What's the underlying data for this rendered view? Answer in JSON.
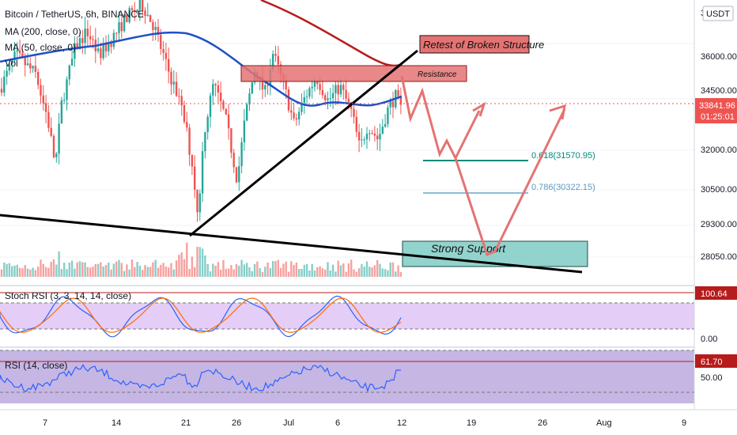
{
  "header": {
    "symbol_line": "Bitcoin / TetherUS, 6h, BINANCE",
    "ma200_label": "MA (200, close, 0)",
    "ma50_label": "MA (50, close, 0)",
    "vol_label": "Vol",
    "currency": "USDT",
    "currency_prefix": "3"
  },
  "price_axis": {
    "ticks": [
      "36000.00",
      "34500.00",
      "32000.00",
      "30500.00",
      "29300.00",
      "28050.00"
    ],
    "current_price": "33841.96",
    "countdown": "01:25:01"
  },
  "time_axis": {
    "ticks": [
      "7",
      "14",
      "21",
      "26",
      "Jul",
      "6",
      "12",
      "19",
      "26",
      "Aug",
      "9"
    ]
  },
  "annotations": {
    "retest_label": "Retest of Broken Structure",
    "resistance_label": "Resistance",
    "support_label": "Strong Support",
    "fib_618": "0.618(31570.95)",
    "fib_786": "0.786(30322.15)"
  },
  "stoch_panel": {
    "title": "Stoch RSI (3, 3, 14, 14, close)",
    "value_badge": "100.64",
    "axis_label": "0.00"
  },
  "rsi_panel": {
    "title": "RSI (14, close)",
    "value_badge": "61.70",
    "axis_label": "50.00"
  },
  "colors": {
    "up": "#26a69a",
    "down": "#ef5350",
    "ma200": "#b71c1c",
    "ma50": "#1e50c8",
    "resistance_fill": "#e57373",
    "support_fill": "#80cbc4",
    "projection": "#e57373",
    "stoch_bg": "#e1c8f5",
    "rsi_bg": "#b39ddb"
  },
  "chart_data": {
    "type": "candlestick",
    "price_range": [
      26800,
      38500
    ],
    "fib_levels": [
      {
        "ratio": 0.618,
        "price": 31570.95
      },
      {
        "ratio": 0.786,
        "price": 30322.15
      }
    ],
    "resistance_zone": [
      35000,
      35600
    ],
    "support_zone": [
      27700,
      28500
    ],
    "last_price": 33841.96,
    "stoch_rsi_last": 100.64,
    "rsi_last": 61.7,
    "projection_path": [
      {
        "date": "Jul 13",
        "price": 35300
      },
      {
        "date": "Jul 14",
        "price": 33400
      },
      {
        "date": "Jul 15",
        "price": 34700
      },
      {
        "date": "Jul 17",
        "price": 31800
      },
      {
        "date": "Jul 18",
        "price": 32400
      },
      {
        "date": "Jul 19",
        "price": 31700
      },
      {
        "date": "Jul 21",
        "price": 28100
      },
      {
        "date": "Jul 22",
        "price": 28400
      },
      {
        "date": "Jul 29",
        "price": 34300
      }
    ]
  }
}
